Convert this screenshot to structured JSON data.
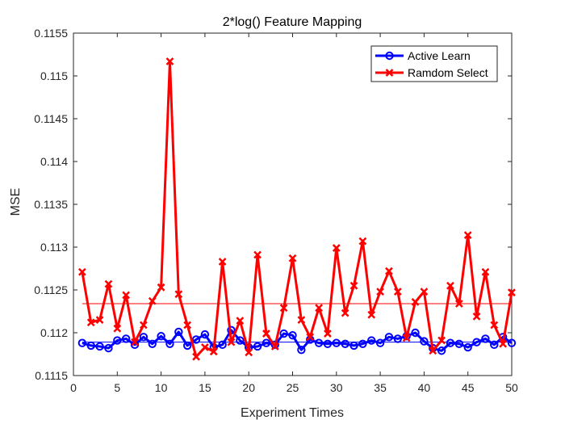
{
  "chart_data": {
    "type": "line",
    "title": "2*log() Feature Mapping",
    "xlabel": "Experiment Times",
    "ylabel": "MSE",
    "xlim": [
      0,
      50
    ],
    "ylim": [
      0.1115,
      0.1155
    ],
    "xticks": [
      0,
      5,
      10,
      15,
      20,
      25,
      30,
      35,
      40,
      45,
      50
    ],
    "yticks": [
      0.1115,
      0.112,
      0.1125,
      0.113,
      0.1135,
      0.114,
      0.1145,
      0.115,
      0.1155
    ],
    "ytick_labels": [
      "0.1115",
      "0.112",
      "0.1125",
      "0.113",
      "0.1135",
      "0.114",
      "0.1145",
      "0.115",
      "0.1155"
    ],
    "grid": false,
    "legend_position": "top-right",
    "x": [
      1,
      2,
      3,
      4,
      5,
      6,
      7,
      8,
      9,
      10,
      11,
      12,
      13,
      14,
      15,
      16,
      17,
      18,
      19,
      20,
      21,
      22,
      23,
      24,
      25,
      26,
      27,
      28,
      29,
      30,
      31,
      32,
      33,
      34,
      35,
      36,
      37,
      38,
      39,
      40,
      41,
      42,
      43,
      44,
      45,
      46,
      47,
      48,
      49,
      50
    ],
    "series": [
      {
        "name": "Active Learn",
        "color": "#0000ff",
        "marker": "circle",
        "values": [
          0.11188,
          0.11185,
          0.11184,
          0.11182,
          0.11191,
          0.11193,
          0.11186,
          0.11195,
          0.11187,
          0.11196,
          0.11187,
          0.11201,
          0.11185,
          0.11192,
          0.11198,
          0.11183,
          0.11186,
          0.11203,
          0.11191,
          0.11183,
          0.11184,
          0.11188,
          0.11186,
          0.11199,
          0.11197,
          0.1118,
          0.11192,
          0.11188,
          0.11187,
          0.11188,
          0.11187,
          0.11185,
          0.11187,
          0.11191,
          0.11188,
          0.11195,
          0.11193,
          0.11196,
          0.112,
          0.1119,
          0.11182,
          0.11179,
          0.11188,
          0.11187,
          0.11183,
          0.11189,
          0.11193,
          0.11186,
          0.11195,
          0.11188
        ]
      },
      {
        "name": "Ramdom Select",
        "color": "#ff0000",
        "marker": "x",
        "values": [
          0.11271,
          0.11212,
          0.11215,
          0.11257,
          0.11205,
          0.11244,
          0.11189,
          0.11209,
          0.11237,
          0.11253,
          0.11517,
          0.11245,
          0.11209,
          0.11172,
          0.11183,
          0.11178,
          0.11283,
          0.11189,
          0.11214,
          0.11177,
          0.11291,
          0.11199,
          0.11184,
          0.11229,
          0.11287,
          0.11215,
          0.11195,
          0.11229,
          0.11199,
          0.11299,
          0.11223,
          0.11255,
          0.11307,
          0.11221,
          0.11248,
          0.11272,
          0.11248,
          0.11194,
          0.11236,
          0.11248,
          0.11179,
          0.11191,
          0.11255,
          0.11234,
          0.11314,
          0.11219,
          0.11271,
          0.11209,
          0.11187,
          0.11247
        ]
      }
    ],
    "mean_lines": [
      {
        "color": "#0000ff",
        "value": 0.11189
      },
      {
        "color": "#ff0000",
        "value": 0.11234
      }
    ]
  }
}
